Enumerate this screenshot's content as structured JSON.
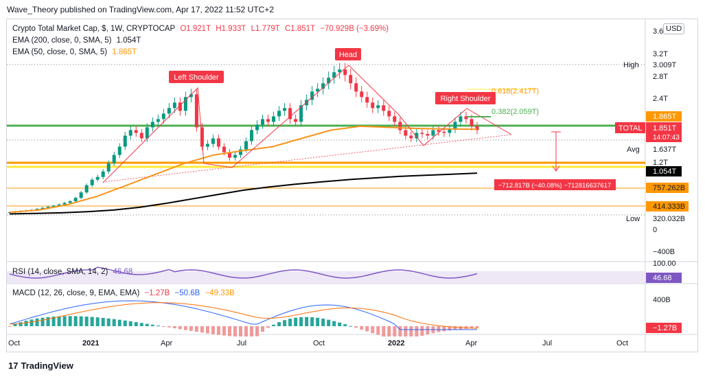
{
  "header": {
    "publisher": "Wave_Theory published on TradingView.com, Apr 17, 2022 11:52 UTC+2"
  },
  "legend": {
    "main": {
      "symbol": "Crypto Total Market Cap, $, 1W, CRYPTOCAP",
      "o": "O1.921T",
      "h": "H1.933T",
      "l": "L1.779T",
      "c": "C1.851T",
      "chg": "−70.929B (−3.69%)"
    },
    "ema200": {
      "label": "EMA (200, close, 0, SMA, 5)",
      "value": "1.054T"
    },
    "ema50": {
      "label": "EMA (50, close, 0, SMA, 5)",
      "value": "1.865T"
    },
    "rsi": {
      "label": "RSI (14, close, SMA, 14, 2)",
      "value": "46.68"
    },
    "macd": {
      "label": "MACD (12, 26, close, 9, EMA, EMA)",
      "v1": "−1.27B",
      "v2": "−50.6B",
      "v3": "−49.33B"
    }
  },
  "currency_button": "USD",
  "brand": "TradingView",
  "colors": {
    "up": "#089981",
    "down": "#f23645",
    "ema50": "#f7931a",
    "ema200": "#000000",
    "green_line": "#4caf50",
    "orange_line": "#ff9800",
    "yellow_line": "#ffeb3b",
    "rsi": "#7e57c2",
    "macd": "#2962ff",
    "signal": "#ff6d00"
  },
  "chart_data": {
    "type": "candlestick",
    "title": "Crypto Total Market Cap, $, 1W, CRYPTOCAP",
    "x_ticks": [
      "Oct",
      "2021",
      "Apr",
      "Jul",
      "Oct",
      "2022",
      "Apr",
      "Jul",
      "Oct"
    ],
    "y_ticks": [
      "3.6T",
      "3.2T",
      "2.8T",
      "2.4T",
      "1.2T",
      "0",
      "−400B"
    ],
    "price_labels": [
      {
        "label": "High",
        "value": "3.009T"
      },
      {
        "label": "",
        "value": "1.865T"
      },
      {
        "label": "TOTAL",
        "value": "1.851T"
      },
      {
        "label": "",
        "value": "14:07:43"
      },
      {
        "label": "Avg",
        "value": "1.637T"
      },
      {
        "label": "",
        "value": "1.054T"
      },
      {
        "label": "",
        "value": "757.262B"
      },
      {
        "label": "",
        "value": "414.333B"
      },
      {
        "label": "Low",
        "value": "320.032B"
      }
    ],
    "annotations": [
      "Left Shoulder",
      "Head",
      "Right Shoulder",
      "0.618(2.417T)",
      "0.382(2.059T)",
      "−712.817B (−40.08%) −712816637617"
    ],
    "rsi_ticks": [
      "100.00"
    ],
    "macd_ticks": [
      "400B"
    ],
    "closes": [
      0.36,
      0.37,
      0.38,
      0.39,
      0.4,
      0.42,
      0.44,
      0.46,
      0.48,
      0.5,
      0.53,
      0.56,
      0.62,
      0.72,
      0.85,
      0.95,
      1.0,
      1.1,
      1.25,
      1.4,
      1.55,
      1.75,
      1.85,
      1.8,
      1.7,
      1.9,
      2.0,
      2.05,
      2.15,
      2.25,
      2.35,
      2.2,
      2.45,
      2.5,
      1.9,
      1.55,
      1.6,
      1.7,
      1.55,
      1.45,
      1.35,
      1.4,
      1.5,
      1.65,
      1.85,
      1.95,
      2.05,
      2.0,
      2.1,
      2.2,
      2.25,
      2.05,
      2.0,
      2.3,
      2.4,
      2.55,
      2.6,
      2.7,
      2.8,
      2.9,
      2.95,
      2.85,
      2.7,
      2.55,
      2.45,
      2.35,
      2.25,
      2.3,
      2.2,
      2.1,
      2.0,
      1.85,
      1.75,
      1.7,
      1.8,
      1.78,
      1.75,
      1.85,
      1.82,
      1.8,
      1.87,
      2.0,
      2.1,
      2.05,
      1.92,
      1.85
    ],
    "ema200": [
      0.33,
      0.34,
      0.35,
      0.37,
      0.4,
      0.45,
      0.52,
      0.6,
      0.68,
      0.76,
      0.82,
      0.87,
      0.91,
      0.95,
      0.98,
      1.01,
      1.03,
      1.05,
      1.07
    ],
    "ema50": [
      0.36,
      0.4,
      0.5,
      0.65,
      0.85,
      1.05,
      1.25,
      1.4,
      1.48,
      1.55,
      1.7,
      1.85,
      1.92,
      1.9,
      1.88,
      1.87,
      1.865
    ],
    "ylim": [
      -0.5,
      3.7
    ]
  }
}
